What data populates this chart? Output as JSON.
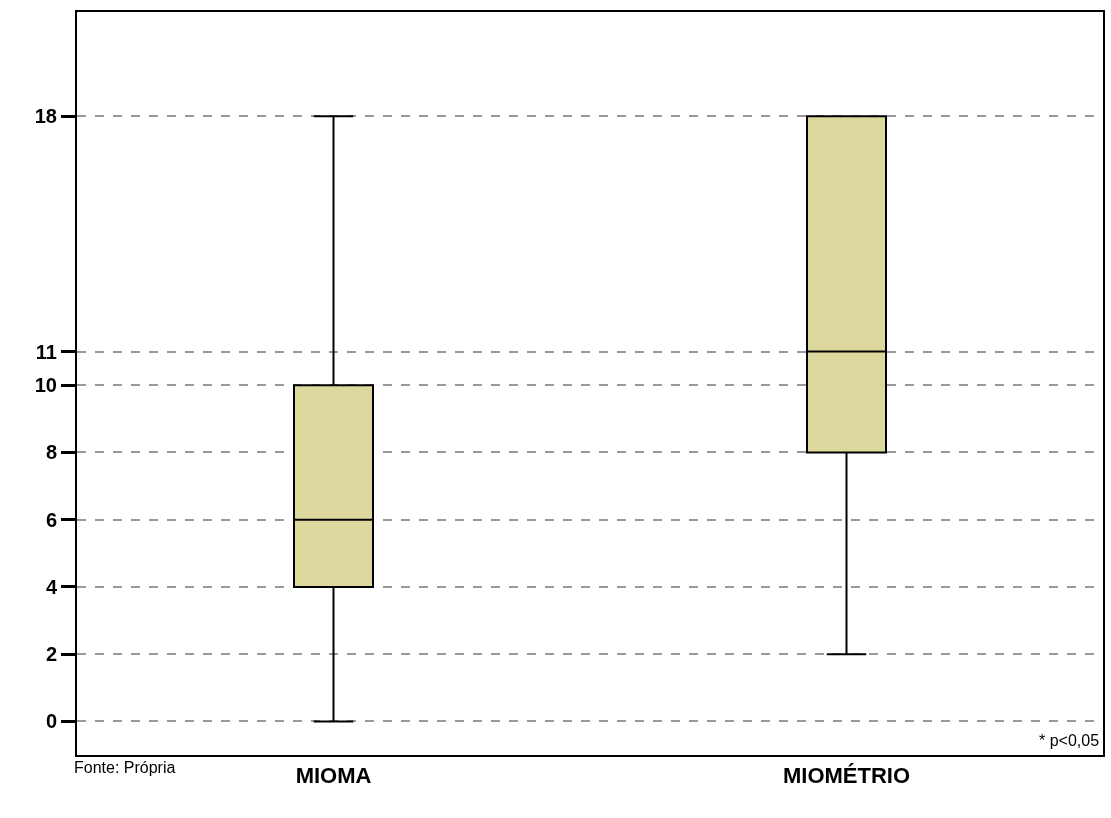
{
  "chart_data": {
    "type": "box",
    "categories": [
      "MIOMA",
      "MIOMÉTRIO"
    ],
    "boxes": [
      {
        "low": 0,
        "q1": 4,
        "median": 6,
        "q3": 10,
        "high": 18
      },
      {
        "low": 2,
        "q1": 8,
        "median": 11,
        "q3": 18,
        "high": 18
      }
    ],
    "color": "#dcd89e",
    "ylim": [
      -1,
      21.1
    ],
    "yticks": [
      0,
      2,
      4,
      6,
      8,
      10,
      11,
      18
    ],
    "grid": "y",
    "annotations": [
      "* p<0,05",
      "Fonte: Própria"
    ]
  }
}
